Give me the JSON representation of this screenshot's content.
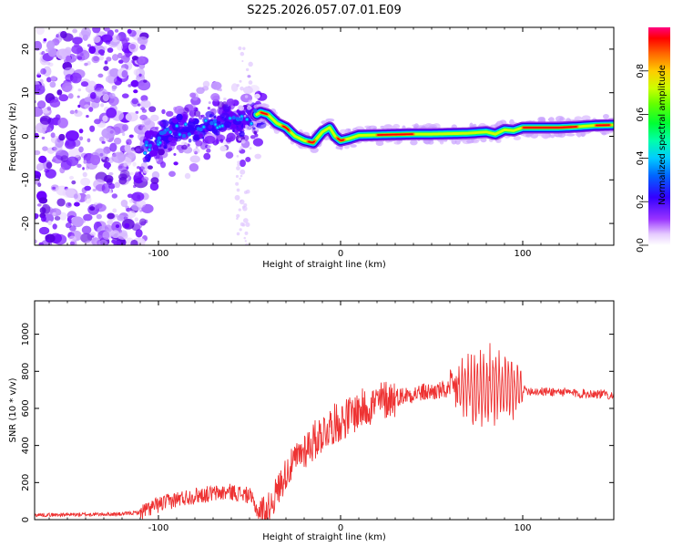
{
  "title": "S225.2026.057.07.01.E09",
  "chart_data": [
    {
      "type": "heatmap",
      "name": "spectrogram",
      "xlabel": "Height of straight line (km)",
      "ylabel": "Frequency (Hz)",
      "xlim": [
        -168,
        150
      ],
      "ylim": [
        -25,
        25
      ],
      "xticks": [
        -100,
        0,
        100
      ],
      "xtick_labels": [
        "-100",
        "0",
        "100"
      ],
      "yticks": [
        -20,
        -10,
        0,
        10,
        20
      ],
      "ytick_labels": [
        "-20",
        "-10",
        "0",
        "10",
        "20"
      ],
      "ridge": [
        [
          -108,
          -3
        ],
        [
          -100,
          -1
        ],
        [
          -90,
          2
        ],
        [
          -80,
          1
        ],
        [
          -70,
          3
        ],
        [
          -60,
          4
        ],
        [
          -55,
          3
        ],
        [
          -50,
          4
        ],
        [
          -44,
          5.5
        ],
        [
          -40,
          5
        ],
        [
          -35,
          3
        ],
        [
          -30,
          2
        ],
        [
          -25,
          0
        ],
        [
          -20,
          -1
        ],
        [
          -15,
          -1.5
        ],
        [
          -10,
          1
        ],
        [
          -6,
          2
        ],
        [
          -3,
          0
        ],
        [
          0,
          -1
        ],
        [
          5,
          -0.5
        ],
        [
          10,
          0.2
        ],
        [
          20,
          0.3
        ],
        [
          30,
          0.4
        ],
        [
          40,
          0.5
        ],
        [
          50,
          0.5
        ],
        [
          60,
          0.6
        ],
        [
          70,
          0.7
        ],
        [
          80,
          1
        ],
        [
          85,
          0.5
        ],
        [
          90,
          1.5
        ],
        [
          95,
          1.3
        ],
        [
          100,
          2
        ],
        [
          110,
          2
        ],
        [
          120,
          2
        ],
        [
          130,
          2.2
        ],
        [
          140,
          2.5
        ],
        [
          150,
          2.6
        ]
      ],
      "colorbar": {
        "label": "Normalized spectral amplitude",
        "ticks": [
          0.0,
          0.2,
          0.4,
          0.6,
          0.8
        ],
        "tick_labels": [
          "0.0",
          "0.2",
          "0.4",
          "0.6",
          "0.8"
        ],
        "range": [
          0,
          1
        ]
      },
      "colors": [
        "#ffffff",
        "#d9b3ff",
        "#8a2be2",
        "#3300ff",
        "#00ccff",
        "#00ff66",
        "#ccff00",
        "#ff9900",
        "#ff0000",
        "#ff0080"
      ]
    },
    {
      "type": "line",
      "name": "snr",
      "xlabel": "Height of straight line (km)",
      "ylabel": "SNR (10 * v/v)",
      "xlim": [
        -168,
        150
      ],
      "ylim": [
        0,
        1180
      ],
      "xticks": [
        -100,
        0,
        100
      ],
      "xtick_labels": [
        "-100",
        "0",
        "100"
      ],
      "yticks": [
        0,
        200,
        400,
        600,
        800,
        1000
      ],
      "ytick_labels": [
        "0",
        "200",
        "400",
        "600",
        "800",
        "1000"
      ],
      "line_color": "#ee3333",
      "envelope": [
        [
          -168,
          25
        ],
        [
          -140,
          28
        ],
        [
          -120,
          30
        ],
        [
          -110,
          40
        ],
        [
          -100,
          80
        ],
        [
          -90,
          110
        ],
        [
          -80,
          130
        ],
        [
          -70,
          140
        ],
        [
          -60,
          150
        ],
        [
          -50,
          130
        ],
        [
          -45,
          40
        ],
        [
          -40,
          50
        ],
        [
          -35,
          150
        ],
        [
          -30,
          250
        ],
        [
          -25,
          320
        ],
        [
          -20,
          380
        ],
        [
          -15,
          420
        ],
        [
          -10,
          470
        ],
        [
          -5,
          510
        ],
        [
          0,
          530
        ],
        [
          5,
          560
        ],
        [
          10,
          590
        ],
        [
          15,
          610
        ],
        [
          20,
          630
        ],
        [
          25,
          650
        ],
        [
          30,
          660
        ],
        [
          40,
          680
        ],
        [
          50,
          690
        ],
        [
          60,
          700
        ],
        [
          65,
          700
        ],
        [
          70,
          720
        ],
        [
          75,
          700
        ],
        [
          80,
          720
        ],
        [
          85,
          720
        ],
        [
          90,
          700
        ],
        [
          95,
          690
        ],
        [
          100,
          700
        ],
        [
          110,
          690
        ],
        [
          120,
          690
        ],
        [
          130,
          680
        ],
        [
          140,
          680
        ],
        [
          150,
          670
        ]
      ]
    }
  ]
}
